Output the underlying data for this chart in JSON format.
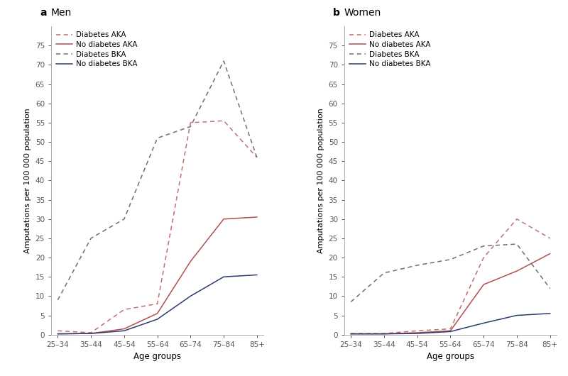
{
  "age_groups": [
    "25–34",
    "35–44",
    "45–54",
    "55–64",
    "65–74",
    "75–84",
    "85+"
  ],
  "men": {
    "diabetes_AKA": [
      1.0,
      0.5,
      6.5,
      8.0,
      55.0,
      55.5,
      46.0
    ],
    "no_diabetes_AKA": [
      0.2,
      0.3,
      1.5,
      5.5,
      19.0,
      30.0,
      30.5
    ],
    "diabetes_BKA": [
      9.0,
      25.0,
      30.0,
      51.0,
      54.0,
      71.0,
      46.0
    ],
    "no_diabetes_BKA": [
      0.2,
      0.3,
      1.0,
      4.0,
      10.0,
      15.0,
      15.5
    ]
  },
  "women": {
    "diabetes_AKA": [
      0.3,
      0.3,
      1.0,
      1.5,
      20.0,
      30.0,
      25.0
    ],
    "no_diabetes_AKA": [
      0.2,
      0.2,
      0.5,
      1.0,
      13.0,
      16.5,
      21.0
    ],
    "diabetes_BKA": [
      8.5,
      16.0,
      18.0,
      19.5,
      23.0,
      23.5,
      12.0
    ],
    "no_diabetes_BKA": [
      0.2,
      0.2,
      0.3,
      0.8,
      3.0,
      5.0,
      5.5
    ]
  },
  "ylim": [
    0,
    80
  ],
  "yticks": [
    0,
    5,
    10,
    15,
    20,
    25,
    30,
    35,
    40,
    45,
    50,
    55,
    60,
    65,
    70,
    75
  ],
  "ylabel": "Amputations per 100 000 population",
  "xlabel": "Age groups",
  "panel_a_label": "a",
  "panel_b_label": "b",
  "panel_a_title": "Men",
  "panel_b_title": "Women",
  "legend_labels": [
    "Diabetes AKA",
    "No diabetes AKA",
    "Diabetes BKA",
    "No diabetes BKA"
  ],
  "color_diabetes_AKA": "#c07070",
  "color_no_diabetes_AKA": "#b05050",
  "color_diabetes_BKA": "#707070",
  "color_no_diabetes_BKA": "#2c3e6e",
  "background_color": "#ffffff",
  "spine_color": "#aaaaaa",
  "tick_color": "#555555"
}
